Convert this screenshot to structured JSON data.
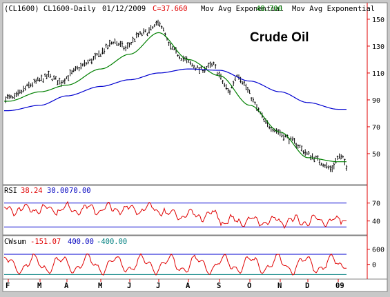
{
  "header": {
    "symbol": "(CL1600) CL1600-Daily",
    "date": "01/12/2009",
    "close": "C=37.660",
    "ma1_label": "Mov Avg Exponential",
    "ma2_value": "48.700",
    "ma2_label": "Mov Avg Exponential"
  },
  "colors": {
    "background": "#ffffff",
    "frame": "#c8c8c8",
    "price_bars": "#000000",
    "ema_short": "#008000",
    "ema_long": "#0000d0",
    "rsi_line": "#e00000",
    "cwsum_line": "#e00000",
    "guide_line": "#0000d0",
    "axis_red": "#e00000",
    "close_text": "#e00000",
    "ma2_text": "#008000",
    "blue_text": "#0000c0",
    "teal_text": "#008080"
  },
  "chart_data": [
    {
      "type": "ohlc",
      "title": "Crude Oil",
      "x_ticks": [
        "F",
        "M",
        "A",
        "M",
        "J",
        "J",
        "A",
        "S",
        "O",
        "N",
        "D",
        "09"
      ],
      "y_ticks": [
        150,
        130,
        110,
        90,
        70,
        50
      ],
      "ylim": [
        30,
        152
      ],
      "series": [
        {
          "type": "line",
          "values_by_month_start": {
            "F": 89,
            "M": 96,
            "A": 101,
            "M2": 113,
            "J": 124,
            "J2": 140,
            "A2": 120,
            "S": 108,
            "O": 86,
            "N": 66,
            "D": 47,
            "09": 44
          }
        },
        {
          "type": "line",
          "values_by_month_start": {
            "F": 82,
            "M": 86,
            "A": 93,
            "M2": 100,
            "J": 105,
            "J2": 110,
            "A2": 113,
            "S": 112,
            "O": 104,
            "N": 96,
            "D": 88,
            "09": 83
          }
        }
      ]
    },
    {
      "type": "line",
      "title": "RSI",
      "header_values": [
        "38.24",
        "30.00",
        "70.00"
      ],
      "reference_lines": [
        30,
        70
      ],
      "y_ticks": [
        70,
        40
      ],
      "ylim": [
        20,
        80
      ],
      "last_value": 38.24
    },
    {
      "type": "line",
      "title": "CWsum",
      "header_values": [
        "-151.07",
        "400.00",
        "-400.00"
      ],
      "reference_lines": [
        400,
        -400
      ],
      "y_ticks": [
        600,
        0
      ],
      "ylim": [
        -500,
        700
      ],
      "last_value": -151.07
    }
  ]
}
